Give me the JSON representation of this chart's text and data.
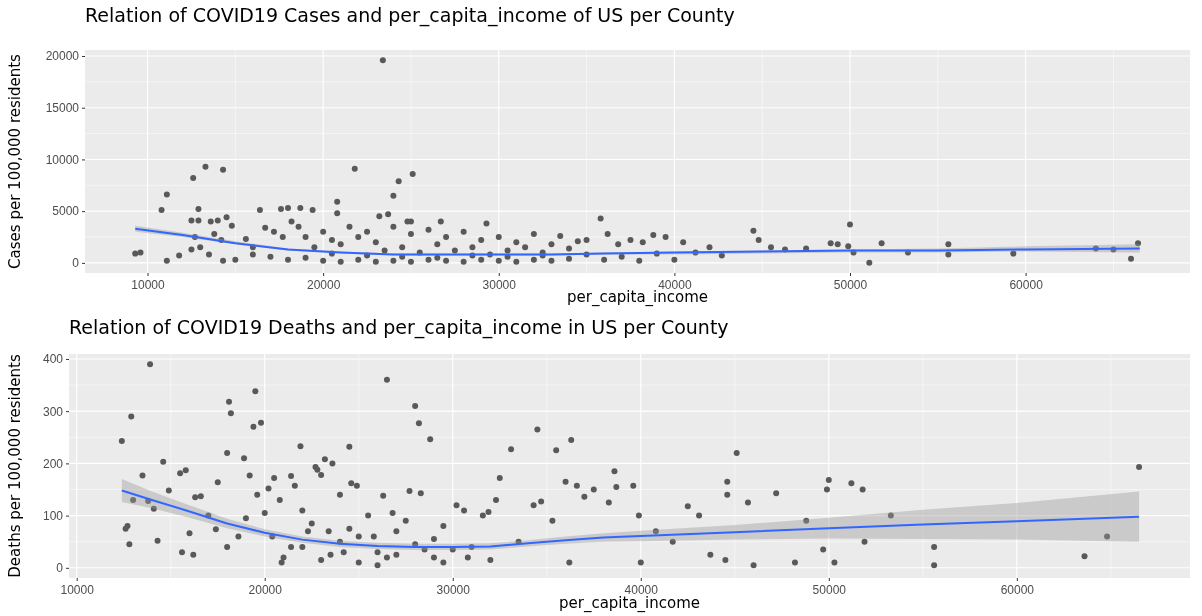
{
  "chart_data": [
    {
      "type": "scatter",
      "title": "Relation of COVID19 Cases and per_capita_income of US per County",
      "xlabel": "per_capita_income",
      "ylabel": "Cases per 100,000 residents",
      "xlim": [
        6440,
        69360
      ],
      "ylim": [
        -980,
        20580
      ],
      "xticks": [
        10000,
        20000,
        30000,
        40000,
        50000,
        60000
      ],
      "yticks": [
        0,
        5000,
        10000,
        15000,
        20000
      ],
      "grid": true,
      "legend": false,
      "series": [
        {
          "type": "scatter",
          "marker": "circle",
          "color": "#595959",
          "x": [
            23400,
            13300,
            14300,
            21800,
            12600,
            25100,
            24300,
            24000,
            11100,
            10800,
            9300,
            9600,
            11100,
            11800,
            12500,
            12900,
            12900,
            13600,
            14000,
            14500,
            14800,
            16400,
            17600,
            18000,
            18700,
            19400,
            20800,
            20800,
            23200,
            23700,
            26700,
            29300,
            25000,
            24800,
            12700,
            13800,
            14200,
            13000,
            12500,
            13500,
            14300,
            15000,
            15600,
            16000,
            16700,
            17200,
            17700,
            18200,
            18600,
            19000,
            19500,
            20000,
            20500,
            21000,
            21500,
            22000,
            22500,
            23000,
            23500,
            24000,
            24500,
            25000,
            25500,
            26000,
            26500,
            27000,
            27500,
            28000,
            28500,
            29000,
            29500,
            30000,
            30500,
            31000,
            31500,
            32000,
            32500,
            33000,
            33500,
            34000,
            34500,
            35000,
            35800,
            36200,
            36800,
            37500,
            38200,
            38800,
            39500,
            40500,
            41200,
            42000,
            42700,
            44500,
            44800,
            45500,
            46300,
            47500,
            48900,
            49300,
            50000,
            49900,
            50200,
            51100,
            51800,
            53300,
            55600,
            55600,
            59300,
            64000,
            65000,
            66400,
            66000,
            20000,
            21000,
            22000,
            23000,
            24000,
            25000,
            26000,
            27000,
            28000,
            29000,
            30000,
            31000,
            32000,
            33000,
            34000,
            36000,
            38000,
            40000,
            18000,
            17000,
            16000,
            19000,
            20500,
            22500,
            24500,
            26500,
            28500,
            30500,
            32500,
            35000,
            37000,
            39000
          ],
          "values": [
            19600,
            9300,
            9000,
            9100,
            8200,
            8600,
            7900,
            6500,
            6600,
            5100,
            900,
            1000,
            200,
            700,
            4100,
            5200,
            4100,
            4000,
            4100,
            4400,
            3600,
            5100,
            5200,
            5300,
            5300,
            5100,
            5900,
            4800,
            4500,
            4700,
            4000,
            3800,
            4000,
            4000,
            2500,
            2800,
            2200,
            1500,
            1300,
            800,
            200,
            300,
            2300,
            1500,
            3400,
            3000,
            2500,
            4000,
            3500,
            2500,
            1500,
            3000,
            2200,
            1800,
            3500,
            2500,
            3000,
            2000,
            1200,
            3500,
            1500,
            2800,
            1000,
            3200,
            1800,
            2500,
            1200,
            3000,
            1500,
            2200,
            800,
            2500,
            1200,
            2000,
            1500,
            2800,
            1000,
            1800,
            2600,
            1400,
            2100,
            2200,
            4300,
            2800,
            1800,
            2200,
            2000,
            2700,
            2500,
            2000,
            1000,
            1500,
            700,
            3100,
            2200,
            1500,
            1300,
            1400,
            1900,
            1800,
            3700,
            1600,
            1000,
            0,
            1900,
            1000,
            1800,
            800,
            900,
            1400,
            1300,
            1900,
            400,
            200,
            100,
            300,
            100,
            200,
            100,
            300,
            200,
            100,
            300,
            200,
            100,
            300,
            200,
            400,
            300,
            200,
            300,
            300,
            600,
            800,
            500,
            900,
            700,
            600,
            500,
            700,
            600,
            700,
            800,
            600,
            900
          ]
        },
        {
          "type": "line",
          "color": "#3366ff",
          "x": [
            9300,
            12000,
            15000,
            18000,
            21000,
            24000,
            27000,
            30000,
            33000,
            36000,
            40000,
            45000,
            50000,
            55000,
            60000,
            66500
          ],
          "values": [
            3300,
            2700,
            1900,
            1300,
            1000,
            800,
            800,
            800,
            800,
            900,
            1000,
            1100,
            1200,
            1200,
            1300,
            1400
          ],
          "lower": [
            3000,
            2500,
            1800,
            1200,
            900,
            700,
            700,
            700,
            700,
            800,
            800,
            900,
            1000,
            1000,
            1100,
            1000
          ],
          "upper": [
            3600,
            2900,
            2100,
            1400,
            1100,
            900,
            900,
            900,
            900,
            1000,
            1100,
            1200,
            1300,
            1400,
            1600,
            1800
          ]
        }
      ]
    },
    {
      "type": "scatter",
      "title": "Relation of COVID19 Deaths and per_capita_income in US per County",
      "xlabel": "per_capita_income",
      "ylabel": "Deaths per 100,000 residents",
      "xlim": [
        9590,
        69210
      ],
      "ylim": [
        -19.5,
        409.5
      ],
      "xticks": [
        10000,
        20000,
        30000,
        40000,
        50000,
        60000
      ],
      "yticks": [
        0,
        100,
        200,
        300,
        400
      ],
      "grid": true,
      "legend": false,
      "series": [
        {
          "type": "scatter",
          "marker": "circle",
          "color": "#595959",
          "x": [
            12400,
            12900,
            12700,
            12600,
            12800,
            13000,
            13500,
            13800,
            13900,
            14100,
            14300,
            14600,
            14900,
            15500,
            15800,
            15600,
            16000,
            16300,
            16600,
            16200,
            17000,
            17500,
            17400,
            18000,
            18100,
            18200,
            18000,
            18600,
            19000,
            18900,
            19200,
            19400,
            19500,
            19800,
            19600,
            20000,
            20200,
            20500,
            20800,
            20400,
            20900,
            21400,
            21600,
            21400,
            21900,
            22000,
            22300,
            22700,
            22800,
            23000,
            23200,
            23400,
            23600,
            24000,
            24500,
            24600,
            24900,
            24200,
            25000,
            25500,
            25800,
            26300,
            26800,
            26500,
            26500,
            27000,
            27700,
            28000,
            28200,
            28300,
            28800,
            28500,
            29000,
            29500,
            30200,
            30600,
            30800,
            31600,
            31900,
            32300,
            32500,
            32000,
            33100,
            33500,
            34300,
            34500,
            34700,
            35500,
            35300,
            36000,
            36300,
            36600,
            36200,
            37000,
            37500,
            38300,
            38600,
            38700,
            39600,
            39900,
            40000,
            40800,
            41700,
            42500,
            43100,
            43700,
            44500,
            44600,
            44600,
            45100,
            45700,
            46000,
            47200,
            48200,
            48800,
            49700,
            50000,
            49900,
            50300,
            51200,
            51800,
            51900,
            53300,
            55600,
            55600,
            63600,
            64800,
            66500,
            21000,
            22000,
            23000,
            24000,
            25000,
            26000,
            27000,
            28000,
            29000,
            30000,
            31000,
            22500,
            24500,
            27500,
            29500,
            26000,
            23500
          ],
          "values": [
            243,
            290,
            80,
            75,
            45,
            130,
            177,
            128,
            390,
            113,
            52,
            203,
            148,
            181,
            187,
            30,
            66,
            135,
            137,
            25,
            100,
            164,
            74,
            220,
            318,
            296,
            40,
            60,
            95,
            210,
            177,
            270,
            338,
            278,
            140,
            105,
            152,
            172,
            130,
            60,
            10,
            176,
            157,
            40,
            233,
            110,
            70,
            193,
            188,
            178,
            208,
            70,
            200,
            140,
            232,
            162,
            157,
            30,
            10,
            100,
            60,
            138,
            105,
            20,
            360,
            70,
            147,
            310,
            277,
            143,
            246,
            35,
            20,
            80,
            120,
            110,
            20,
            100,
            107,
            130,
            172,
            15,
            227,
            50,
            120,
            265,
            127,
            225,
            90,
            165,
            245,
            157,
            10,
            136,
            150,
            125,
            185,
            155,
            157,
            100,
            10,
            70,
            50,
            118,
            100,
            25,
            15,
            165,
            140,
            220,
            125,
            5,
            143,
            10,
            90,
            35,
            168,
            150,
            10,
            162,
            150,
            50,
            100,
            40,
            5,
            22,
            60,
            193,
            20,
            40,
            15,
            50,
            60,
            30,
            25,
            45,
            55,
            35,
            40,
            85,
            75,
            90,
            10,
            5,
            25
          ]
        },
        {
          "type": "line",
          "color": "#3366ff",
          "x": [
            12400,
            14000,
            16000,
            18000,
            20000,
            22000,
            24000,
            26000,
            28000,
            30000,
            32000,
            34000,
            36000,
            38000,
            40000,
            45000,
            50000,
            55000,
            60000,
            66500
          ],
          "values": [
            148,
            130,
            108,
            85,
            67,
            54,
            46,
            42,
            40,
            40,
            41,
            47,
            53,
            58,
            61,
            68,
            76,
            83,
            89,
            98
          ],
          "lower": [
            126,
            114,
            96,
            76,
            60,
            48,
            40,
            36,
            34,
            34,
            35,
            41,
            46,
            50,
            51,
            54,
            56,
            55,
            54,
            50
          ],
          "upper": [
            170,
            146,
            120,
            94,
            74,
            60,
            52,
            48,
            46,
            46,
            47,
            53,
            60,
            66,
            71,
            82,
            96,
            111,
            124,
            146
          ]
        }
      ]
    }
  ]
}
